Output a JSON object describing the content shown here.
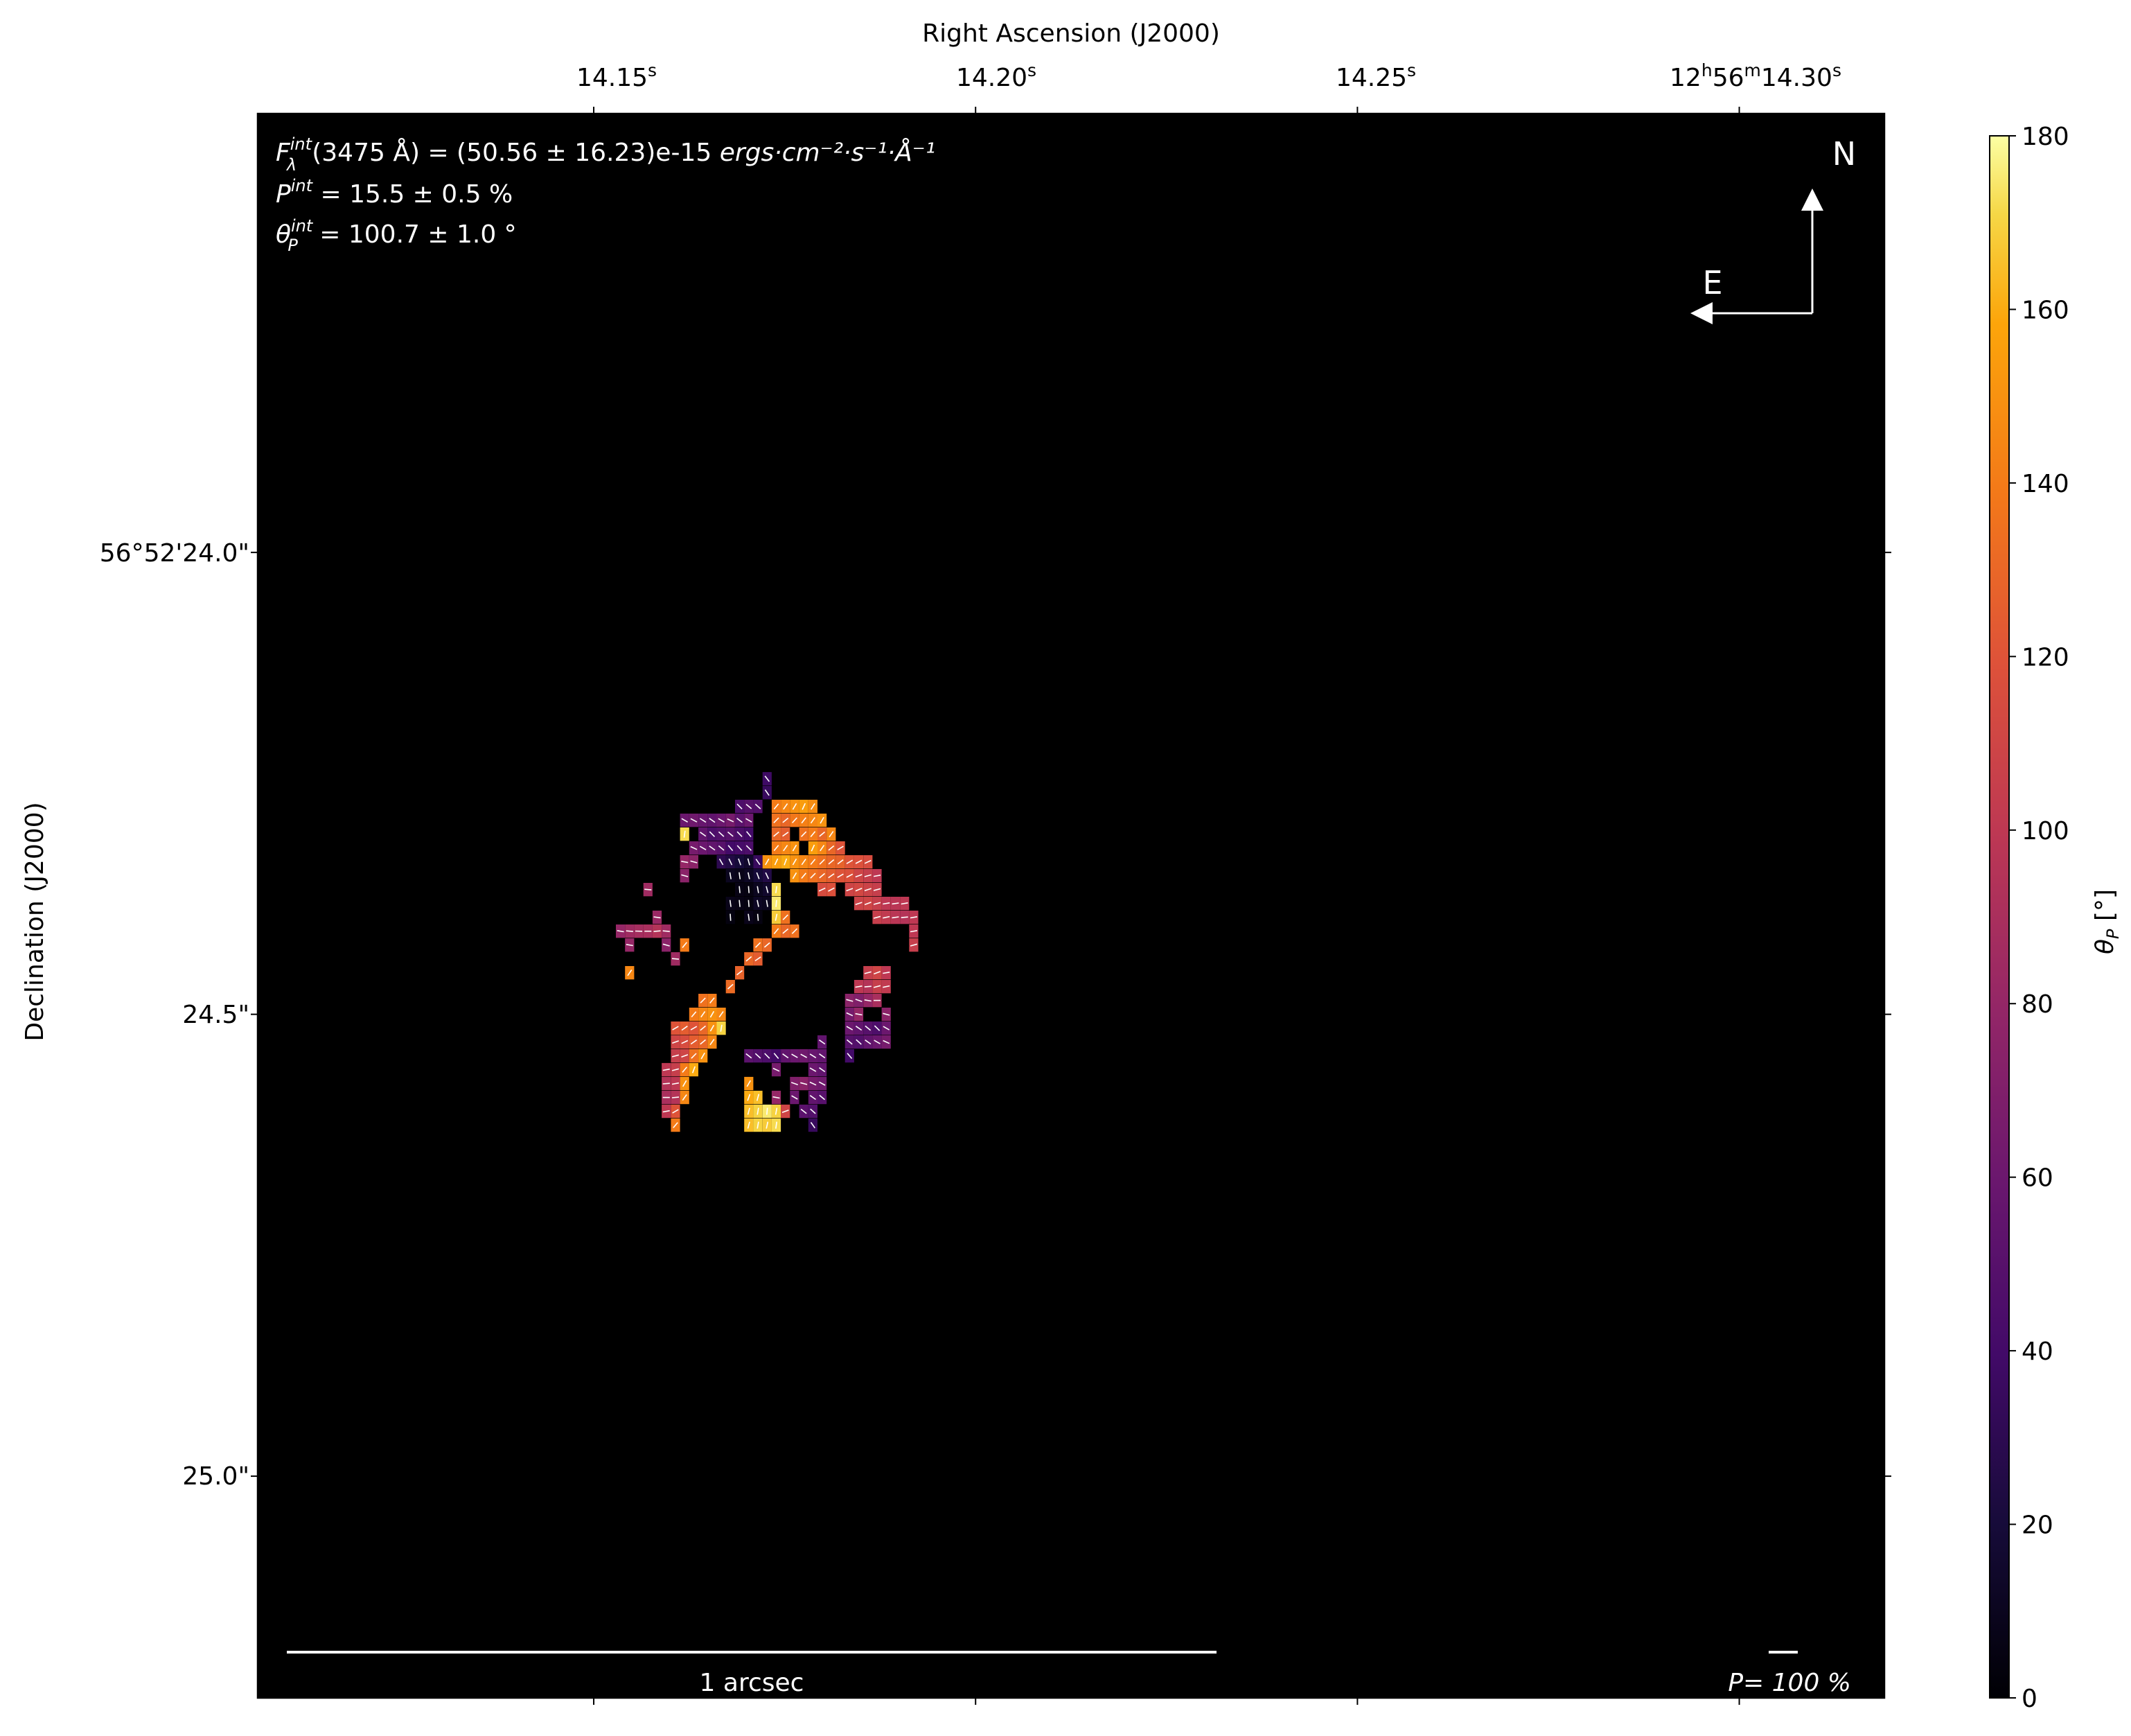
{
  "colors": {
    "background": "#ffffff",
    "plot_bg": "#000000",
    "overlay_text": "#ffffff",
    "vector": "#ffffff"
  },
  "chart_data": {
    "type": "heatmap",
    "colormap": "inferno",
    "top_axis": {
      "label": "Right Ascension (J2000)",
      "ticks": [
        {
          "value": 14.15,
          "prefix": "14.15",
          "unit": "s"
        },
        {
          "value": 14.2,
          "prefix": "14.20",
          "unit": "s"
        },
        {
          "value": 14.25,
          "prefix": "14.25",
          "unit": "s"
        },
        {
          "value": 14.3,
          "prefix": "12",
          "unit": "h",
          "mid": "56",
          "mid_unit": "m",
          "tail": "14.30",
          "tail_unit": "s"
        }
      ],
      "range": [
        14.106,
        14.319
      ]
    },
    "left_axis": {
      "label": "Declination (J2000)",
      "ticks": [
        {
          "value": 24.0,
          "label": "56°52'24.0\""
        },
        {
          "value": 24.5,
          "label": "24.5\""
        },
        {
          "value": 25.0,
          "label": "25.0\""
        }
      ],
      "range": [
        23.525,
        25.24
      ]
    },
    "colorbar": {
      "label_symbol": "θ",
      "label_sub": "P",
      "label_unit": " [°]",
      "range": [
        0,
        180
      ],
      "ticks": [
        0,
        20,
        40,
        60,
        80,
        100,
        120,
        140,
        160,
        180
      ]
    },
    "annotations": {
      "flux": {
        "symbol": "F",
        "sup": "int",
        "sub": "λ",
        "body": "(3475 Å) = (50.56 ± 16.23)e-15 ",
        "units": "ergs·cm⁻²·s⁻¹·Å⁻¹"
      },
      "pol": {
        "symbol": "P",
        "sup": "int",
        "body": " = 15.5 ± 0.5 %"
      },
      "angle": {
        "symbol": "θ",
        "sup": "int",
        "sub": "P",
        "body": " = 100.7 ± 1.0 °"
      }
    },
    "compass": {
      "north": "N",
      "east": "E"
    },
    "scalebar": {
      "label": "1 arcsec"
    },
    "vector_scale": {
      "label": "P= 100 %"
    },
    "grid": false,
    "pixel_size": {
      "ra": 0.0012,
      "dec": 0.0145
    },
    "cells": [
      [
        14.1727,
        24.245,
        38
      ],
      [
        14.1727,
        24.26,
        35
      ],
      [
        14.1691,
        24.275,
        45
      ],
      [
        14.1703,
        24.275,
        50
      ],
      [
        14.1715,
        24.275,
        48
      ],
      [
        14.1739,
        24.275,
        140
      ],
      [
        14.1751,
        24.275,
        145
      ],
      [
        14.1763,
        24.275,
        150
      ],
      [
        14.1775,
        24.275,
        155
      ],
      [
        14.1787,
        24.275,
        148
      ],
      [
        14.1619,
        24.29,
        60
      ],
      [
        14.1631,
        24.29,
        62
      ],
      [
        14.1643,
        24.29,
        58
      ],
      [
        14.1655,
        24.29,
        55
      ],
      [
        14.1667,
        24.29,
        60
      ],
      [
        14.1679,
        24.29,
        65
      ],
      [
        14.1691,
        24.29,
        52
      ],
      [
        14.1703,
        24.29,
        60
      ],
      [
        14.1739,
        24.29,
        135
      ],
      [
        14.1751,
        24.29,
        130
      ],
      [
        14.1763,
        24.29,
        138
      ],
      [
        14.1775,
        24.29,
        142
      ],
      [
        14.1787,
        24.29,
        145
      ],
      [
        14.1799,
        24.29,
        150
      ],
      [
        14.1619,
        24.305,
        172
      ],
      [
        14.1643,
        24.305,
        55
      ],
      [
        14.1655,
        24.305,
        45
      ],
      [
        14.1667,
        24.305,
        48
      ],
      [
        14.1679,
        24.305,
        50
      ],
      [
        14.1691,
        24.305,
        44
      ],
      [
        14.1703,
        24.305,
        40
      ],
      [
        14.1739,
        24.305,
        130
      ],
      [
        14.1751,
        24.305,
        125
      ],
      [
        14.1775,
        24.305,
        135
      ],
      [
        14.1787,
        24.305,
        140
      ],
      [
        14.1799,
        24.305,
        130
      ],
      [
        14.1811,
        24.305,
        145
      ],
      [
        14.1631,
        24.32,
        65
      ],
      [
        14.1643,
        24.32,
        60
      ],
      [
        14.1655,
        24.32,
        55
      ],
      [
        14.1667,
        24.32,
        50
      ],
      [
        14.1679,
        24.32,
        40
      ],
      [
        14.1691,
        24.32,
        42
      ],
      [
        14.1703,
        24.32,
        45
      ],
      [
        14.1739,
        24.32,
        140
      ],
      [
        14.1751,
        24.32,
        145
      ],
      [
        14.1763,
        24.32,
        150
      ],
      [
        14.1787,
        24.32,
        155
      ],
      [
        14.1799,
        24.32,
        145
      ],
      [
        14.1811,
        24.32,
        130
      ],
      [
        14.1823,
        24.32,
        120
      ],
      [
        14.1619,
        24.335,
        80
      ],
      [
        14.1631,
        24.335,
        75
      ],
      [
        14.1667,
        24.335,
        30
      ],
      [
        14.1679,
        24.335,
        25
      ],
      [
        14.1691,
        24.335,
        20
      ],
      [
        14.1703,
        24.335,
        15
      ],
      [
        14.1715,
        24.335,
        35
      ],
      [
        14.1727,
        24.335,
        150
      ],
      [
        14.1739,
        24.335,
        155
      ],
      [
        14.1751,
        24.335,
        160
      ],
      [
        14.1763,
        24.335,
        150
      ],
      [
        14.1775,
        24.335,
        145
      ],
      [
        14.1787,
        24.335,
        140
      ],
      [
        14.1799,
        24.335,
        135
      ],
      [
        14.1811,
        24.335,
        130
      ],
      [
        14.1823,
        24.335,
        128
      ],
      [
        14.1835,
        24.335,
        120
      ],
      [
        14.1847,
        24.335,
        118
      ],
      [
        14.1859,
        24.335,
        115
      ],
      [
        14.1619,
        24.35,
        75
      ],
      [
        14.1679,
        24.35,
        10
      ],
      [
        14.1691,
        24.35,
        8
      ],
      [
        14.1703,
        24.35,
        12
      ],
      [
        14.1715,
        24.35,
        20
      ],
      [
        14.1727,
        24.35,
        25
      ],
      [
        14.1763,
        24.35,
        150
      ],
      [
        14.1775,
        24.35,
        140
      ],
      [
        14.1787,
        24.35,
        135
      ],
      [
        14.1799,
        24.35,
        130
      ],
      [
        14.1811,
        24.35,
        125
      ],
      [
        14.1823,
        24.35,
        120
      ],
      [
        14.1835,
        24.35,
        118
      ],
      [
        14.1847,
        24.35,
        110
      ],
      [
        14.1859,
        24.35,
        105
      ],
      [
        14.1871,
        24.35,
        100
      ],
      [
        14.1571,
        24.365,
        85
      ],
      [
        14.1691,
        24.365,
        6
      ],
      [
        14.1703,
        24.365,
        5
      ],
      [
        14.1715,
        24.365,
        10
      ],
      [
        14.1727,
        24.365,
        15
      ],
      [
        14.1739,
        24.365,
        172
      ],
      [
        14.1799,
        24.365,
        115
      ],
      [
        14.1811,
        24.365,
        118
      ],
      [
        14.1835,
        24.365,
        110
      ],
      [
        14.1847,
        24.365,
        112
      ],
      [
        14.1859,
        24.365,
        108
      ],
      [
        14.1871,
        24.365,
        105
      ],
      [
        14.1679,
        24.38,
        8
      ],
      [
        14.1691,
        24.38,
        6
      ],
      [
        14.1703,
        24.38,
        5
      ],
      [
        14.1715,
        24.38,
        12
      ],
      [
        14.1727,
        24.38,
        10
      ],
      [
        14.1739,
        24.38,
        175
      ],
      [
        14.1847,
        24.38,
        108
      ],
      [
        14.1859,
        24.38,
        110
      ],
      [
        14.1871,
        24.38,
        105
      ],
      [
        14.1883,
        24.38,
        100
      ],
      [
        14.1895,
        24.38,
        98
      ],
      [
        14.1907,
        24.38,
        100
      ],
      [
        14.1583,
        24.395,
        82
      ],
      [
        14.1679,
        24.395,
        4
      ],
      [
        14.1703,
        24.395,
        8
      ],
      [
        14.1715,
        24.395,
        5
      ],
      [
        14.1739,
        24.395,
        168
      ],
      [
        14.1751,
        24.395,
        135
      ],
      [
        14.1871,
        24.395,
        105
      ],
      [
        14.1883,
        24.395,
        102
      ],
      [
        14.1895,
        24.395,
        98
      ],
      [
        14.1907,
        24.395,
        95
      ],
      [
        14.1919,
        24.395,
        100
      ],
      [
        14.1535,
        24.41,
        80
      ],
      [
        14.1547,
        24.41,
        85
      ],
      [
        14.1559,
        24.41,
        88
      ],
      [
        14.1571,
        24.41,
        90
      ],
      [
        14.1583,
        24.41,
        95
      ],
      [
        14.1595,
        24.41,
        85
      ],
      [
        14.1739,
        24.41,
        140
      ],
      [
        14.1751,
        24.41,
        130
      ],
      [
        14.1763,
        24.41,
        135
      ],
      [
        14.1919,
        24.41,
        100
      ],
      [
        14.1547,
        24.425,
        80
      ],
      [
        14.1595,
        24.425,
        75
      ],
      [
        14.1619,
        24.425,
        140
      ],
      [
        14.1715,
        24.425,
        135
      ],
      [
        14.1727,
        24.425,
        130
      ],
      [
        14.1919,
        24.425,
        105
      ],
      [
        14.1607,
        24.44,
        85
      ],
      [
        14.1703,
        24.44,
        130
      ],
      [
        14.1715,
        24.44,
        125
      ],
      [
        14.1547,
        24.455,
        145
      ],
      [
        14.1691,
        24.455,
        128
      ],
      [
        14.1859,
        24.455,
        105
      ],
      [
        14.1871,
        24.455,
        110
      ],
      [
        14.1883,
        24.455,
        100
      ],
      [
        14.1679,
        24.47,
        132
      ],
      [
        14.1847,
        24.47,
        100
      ],
      [
        14.1859,
        24.47,
        95
      ],
      [
        14.1871,
        24.47,
        105
      ],
      [
        14.1883,
        24.47,
        102
      ],
      [
        14.1643,
        24.485,
        135
      ],
      [
        14.1655,
        24.485,
        140
      ],
      [
        14.1835,
        24.485,
        75
      ],
      [
        14.1847,
        24.485,
        70
      ],
      [
        14.1859,
        24.485,
        80
      ],
      [
        14.1871,
        24.485,
        90
      ],
      [
        14.1631,
        24.5,
        140
      ],
      [
        14.1643,
        24.5,
        145
      ],
      [
        14.1655,
        24.5,
        150
      ],
      [
        14.1667,
        24.5,
        145
      ],
      [
        14.1835,
        24.5,
        65
      ],
      [
        14.1847,
        24.5,
        80
      ],
      [
        14.1883,
        24.5,
        75
      ],
      [
        14.1607,
        24.515,
        120
      ],
      [
        14.1619,
        24.515,
        125
      ],
      [
        14.1631,
        24.515,
        120
      ],
      [
        14.1643,
        24.515,
        130
      ],
      [
        14.1655,
        24.515,
        150
      ],
      [
        14.1667,
        24.515,
        170
      ],
      [
        14.1835,
        24.515,
        60
      ],
      [
        14.1847,
        24.515,
        55
      ],
      [
        14.1859,
        24.515,
        50
      ],
      [
        14.1871,
        24.515,
        45
      ],
      [
        14.1883,
        24.515,
        60
      ],
      [
        14.1607,
        24.53,
        110
      ],
      [
        14.1619,
        24.53,
        115
      ],
      [
        14.1631,
        24.53,
        125
      ],
      [
        14.1643,
        24.53,
        130
      ],
      [
        14.1655,
        24.53,
        145
      ],
      [
        14.1799,
        24.53,
        55
      ],
      [
        14.1835,
        24.53,
        50
      ],
      [
        14.1847,
        24.53,
        48
      ],
      [
        14.1859,
        24.53,
        55
      ],
      [
        14.1871,
        24.53,
        60
      ],
      [
        14.1883,
        24.53,
        65
      ],
      [
        14.1607,
        24.545,
        105
      ],
      [
        14.1619,
        24.545,
        110
      ],
      [
        14.1631,
        24.545,
        135
      ],
      [
        14.1643,
        24.545,
        150
      ],
      [
        14.1703,
        24.545,
        52
      ],
      [
        14.1715,
        24.545,
        48
      ],
      [
        14.1727,
        24.545,
        45
      ],
      [
        14.1739,
        24.545,
        40
      ],
      [
        14.1751,
        24.545,
        55
      ],
      [
        14.1763,
        24.545,
        60
      ],
      [
        14.1775,
        24.545,
        62
      ],
      [
        14.1787,
        24.545,
        58
      ],
      [
        14.1799,
        24.545,
        55
      ],
      [
        14.1835,
        24.545,
        40
      ],
      [
        14.1595,
        24.56,
        100
      ],
      [
        14.1607,
        24.56,
        105
      ],
      [
        14.1619,
        24.56,
        140
      ],
      [
        14.1631,
        24.56,
        160
      ],
      [
        14.1739,
        24.56,
        65
      ],
      [
        14.1787,
        24.56,
        60
      ],
      [
        14.1799,
        24.56,
        55
      ],
      [
        14.1595,
        24.575,
        95
      ],
      [
        14.1607,
        24.575,
        100
      ],
      [
        14.1619,
        24.575,
        150
      ],
      [
        14.1703,
        24.575,
        150
      ],
      [
        14.1763,
        24.575,
        70
      ],
      [
        14.1775,
        24.575,
        75
      ],
      [
        14.1787,
        24.575,
        65
      ],
      [
        14.1799,
        24.575,
        62
      ],
      [
        14.1595,
        24.59,
        90
      ],
      [
        14.1607,
        24.59,
        95
      ],
      [
        14.1619,
        24.59,
        145
      ],
      [
        14.1703,
        24.59,
        160
      ],
      [
        14.1715,
        24.59,
        165
      ],
      [
        14.1739,
        24.59,
        80
      ],
      [
        14.1763,
        24.59,
        60
      ],
      [
        14.1787,
        24.59,
        55
      ],
      [
        14.1799,
        24.59,
        50
      ],
      [
        14.1595,
        24.605,
        100
      ],
      [
        14.1607,
        24.605,
        120
      ],
      [
        14.1703,
        24.605,
        165
      ],
      [
        14.1715,
        24.605,
        170
      ],
      [
        14.1727,
        24.605,
        175
      ],
      [
        14.1739,
        24.605,
        170
      ],
      [
        14.1751,
        24.605,
        110
      ],
      [
        14.1775,
        24.605,
        52
      ],
      [
        14.1787,
        24.605,
        48
      ],
      [
        14.1607,
        24.62,
        140
      ],
      [
        14.1703,
        24.62,
        165
      ],
      [
        14.1715,
        24.62,
        170
      ],
      [
        14.1727,
        24.62,
        168
      ],
      [
        14.1739,
        24.62,
        172
      ],
      [
        14.1787,
        24.62,
        35
      ]
    ]
  }
}
